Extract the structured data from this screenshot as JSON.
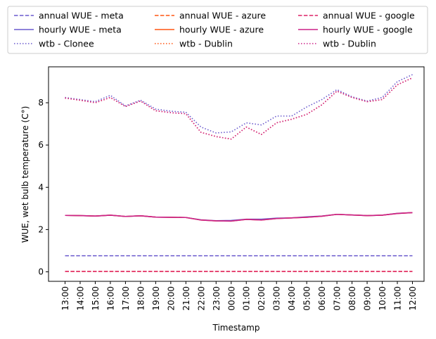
{
  "chart_data": {
    "type": "line",
    "title": "",
    "xlabel": "Timestamp",
    "ylabel": "WUE, wet bulb temperature (C°)",
    "ylim": [
      -0.45,
      9.7
    ],
    "yticks": [
      0,
      2,
      4,
      6,
      8
    ],
    "grid": false,
    "legend_position": "top, above plot, 3 columns",
    "categories": [
      "13:00",
      "14:00",
      "15:00",
      "16:00",
      "17:00",
      "18:00",
      "19:00",
      "20:00",
      "21:00",
      "22:00",
      "23:00",
      "00:00",
      "01:00",
      "02:00",
      "03:00",
      "04:00",
      "05:00",
      "06:00",
      "07:00",
      "08:00",
      "09:00",
      "10:00",
      "11:00",
      "12:00"
    ],
    "series": [
      {
        "name": "annual WUE - meta",
        "color": "#6a5acd",
        "dash": "dashed",
        "values": [
          0.76,
          0.76,
          0.76,
          0.76,
          0.76,
          0.76,
          0.76,
          0.76,
          0.76,
          0.76,
          0.76,
          0.76,
          0.76,
          0.76,
          0.76,
          0.76,
          0.76,
          0.76,
          0.76,
          0.76,
          0.76,
          0.76,
          0.76,
          0.76
        ]
      },
      {
        "name": "hourly WUE - meta",
        "color": "#6a5acd",
        "dash": "solid",
        "values": [
          2.67,
          2.66,
          2.64,
          2.68,
          2.62,
          2.65,
          2.59,
          2.58,
          2.57,
          2.46,
          2.42,
          2.43,
          2.49,
          2.49,
          2.54,
          2.55,
          2.6,
          2.64,
          2.72,
          2.69,
          2.66,
          2.68,
          2.77,
          2.8
        ]
      },
      {
        "name": "wtb - Clonee",
        "color": "#6a5acd",
        "dash": "dotted",
        "values": [
          8.25,
          8.15,
          8.05,
          8.35,
          7.85,
          8.12,
          7.7,
          7.6,
          7.55,
          6.85,
          6.57,
          6.62,
          7.05,
          6.95,
          7.37,
          7.37,
          7.8,
          8.15,
          8.62,
          8.28,
          8.08,
          8.25,
          9.0,
          9.33
        ]
      },
      {
        "name": "annual WUE - azure",
        "color": "#ff5511",
        "dash": "dashed",
        "values": [
          0.02,
          0.02,
          0.02,
          0.02,
          0.02,
          0.02,
          0.02,
          0.02,
          0.02,
          0.02,
          0.02,
          0.02,
          0.02,
          0.02,
          0.02,
          0.02,
          0.02,
          0.02,
          0.02,
          0.02,
          0.02,
          0.02,
          0.02,
          0.02
        ]
      },
      {
        "name": "hourly WUE - azure",
        "color": "#ff5511",
        "dash": "solid",
        "values": [
          2.67,
          2.66,
          2.64,
          2.68,
          2.62,
          2.65,
          2.59,
          2.58,
          2.57,
          2.45,
          2.41,
          2.4,
          2.48,
          2.45,
          2.52,
          2.55,
          2.58,
          2.63,
          2.72,
          2.69,
          2.66,
          2.68,
          2.76,
          2.8
        ]
      },
      {
        "name": "wtb - Dublin",
        "color": "#ff5511",
        "dash": "dotted",
        "values": [
          8.22,
          8.12,
          8.0,
          8.25,
          7.82,
          8.08,
          7.62,
          7.53,
          7.48,
          6.6,
          6.4,
          6.28,
          6.85,
          6.5,
          7.05,
          7.22,
          7.45,
          7.9,
          8.55,
          8.25,
          8.05,
          8.15,
          8.85,
          9.18
        ]
      },
      {
        "name": "annual WUE - google",
        "color": "#dd2266",
        "dash": "dashed",
        "values": [
          0.02,
          0.02,
          0.02,
          0.02,
          0.02,
          0.02,
          0.02,
          0.02,
          0.02,
          0.02,
          0.02,
          0.02,
          0.02,
          0.02,
          0.02,
          0.02,
          0.02,
          0.02,
          0.02,
          0.02,
          0.02,
          0.02,
          0.02,
          0.02
        ]
      },
      {
        "name": "hourly WUE - google",
        "color": "#cc2288",
        "dash": "solid",
        "values": [
          2.67,
          2.66,
          2.64,
          2.68,
          2.62,
          2.65,
          2.59,
          2.58,
          2.57,
          2.45,
          2.41,
          2.4,
          2.48,
          2.45,
          2.52,
          2.55,
          2.58,
          2.63,
          2.72,
          2.69,
          2.66,
          2.68,
          2.76,
          2.8
        ]
      },
      {
        "name": "wtb - Dublin",
        "color": "#cc2288",
        "dash": "dotted",
        "values": [
          8.22,
          8.12,
          8.0,
          8.25,
          7.82,
          8.08,
          7.62,
          7.53,
          7.48,
          6.6,
          6.4,
          6.28,
          6.85,
          6.5,
          7.05,
          7.22,
          7.45,
          7.9,
          8.55,
          8.25,
          8.05,
          8.15,
          8.85,
          9.18
        ]
      }
    ]
  }
}
